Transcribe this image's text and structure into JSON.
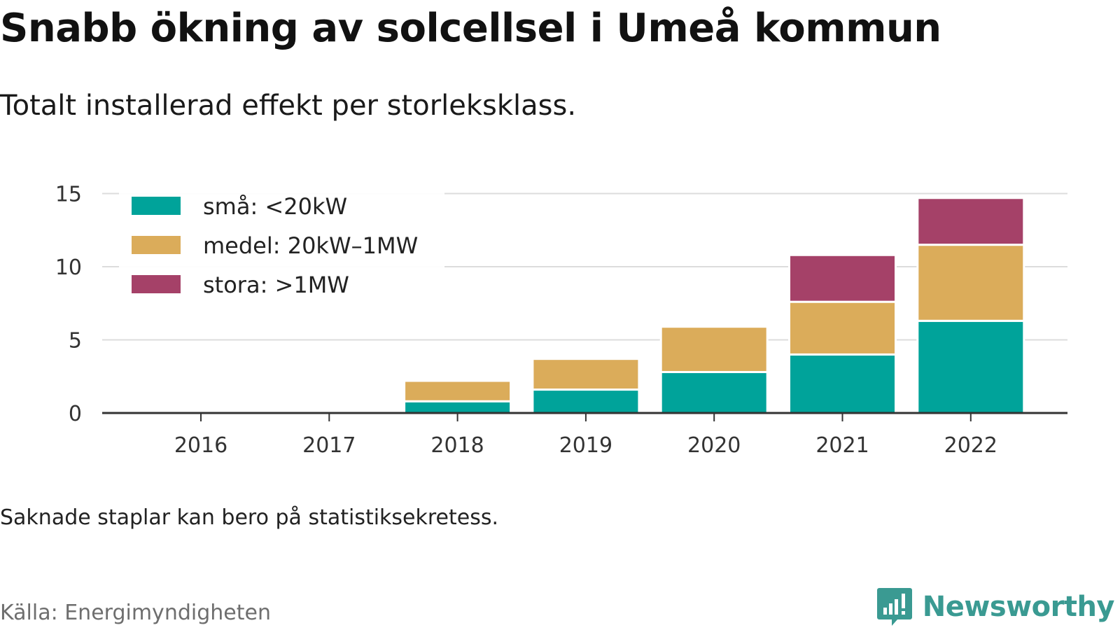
{
  "title": "Snabb ökning av solcellsel i Umeå kommun",
  "subtitle": "Totalt installerad effekt per storleksklass.",
  "note": "Saknade staplar kan bero på statistiksekretess.",
  "source": "Källa: Energimyndigheten",
  "brand": {
    "name": "Newsworthy",
    "icon": "newsworthy-logo-icon",
    "color": "#3a9a92"
  },
  "chart_data": {
    "type": "bar",
    "stacked": true,
    "categories": [
      "2016",
      "2017",
      "2018",
      "2019",
      "2020",
      "2021",
      "2022"
    ],
    "series": [
      {
        "name": "små: <20kW",
        "color": "#00a39a",
        "values": [
          0,
          0,
          0.8,
          1.6,
          2.8,
          4.0,
          6.3
        ]
      },
      {
        "name": "medel: 20kW–1MW",
        "color": "#dbac5a",
        "values": [
          0,
          0,
          1.4,
          2.1,
          3.1,
          3.6,
          5.2
        ]
      },
      {
        "name": "stora: >1MW",
        "color": "#a54168",
        "values": [
          0,
          0,
          0,
          0,
          0,
          3.2,
          3.2
        ]
      }
    ],
    "yticks": [
      0,
      5,
      10,
      15
    ],
    "ylim": [
      0,
      15.5
    ],
    "xlabel": "",
    "ylabel": "",
    "grid": true,
    "legend_position": "top-left"
  }
}
